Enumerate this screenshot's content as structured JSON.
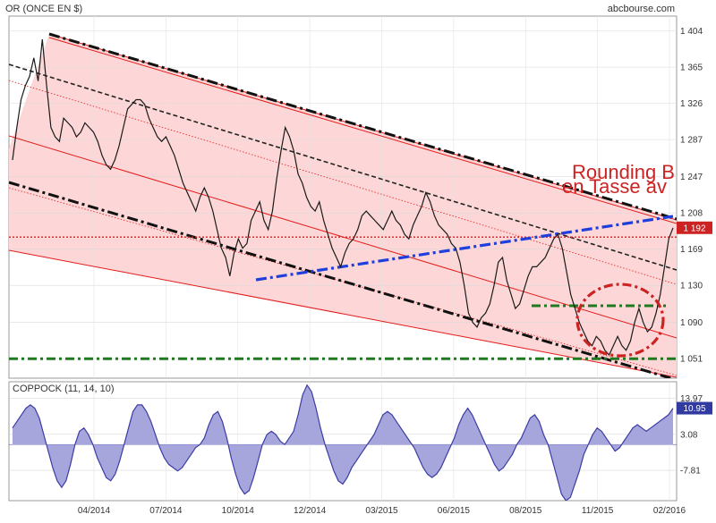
{
  "header": {
    "title": "OR (ONCE EN $)",
    "source": "abcbourse.com"
  },
  "annotation": {
    "line1": "Rounding B",
    "line2": "en Tasse av"
  },
  "colors": {
    "price": "#1a1a1a",
    "channel_fill": "#fdd7d7",
    "channel_line": "#e41a1a",
    "support_blue": "#1f3fdc",
    "green_level": "#1f7a1f",
    "coppock_fill": "#a6a6dd",
    "coppock_line": "#3c3ca3",
    "badge_red": "#cc2222",
    "badge_blue": "#303aa0"
  },
  "chart_data": [
    {
      "type": "line",
      "title": "OR (ONCE EN $)",
      "y_ticks": [
        1051,
        1090,
        1130,
        1169,
        1208,
        1247,
        1287,
        1326,
        1365,
        1404
      ],
      "ylim": [
        1030,
        1420
      ],
      "x_ticks": [
        "04/2014",
        "07/2014",
        "10/2014",
        "12/2014",
        "03/2015",
        "06/2015",
        "08/2015",
        "11/2015",
        "02/2016"
      ],
      "last_value": "1 192",
      "grid": true,
      "series": [
        {
          "values": [
            1265,
            1300,
            1330,
            1345,
            1355,
            1375,
            1350,
            1395,
            1345,
            1300,
            1290,
            1285,
            1310,
            1305,
            1300,
            1290,
            1295,
            1305,
            1300,
            1295,
            1285,
            1270,
            1260,
            1255,
            1265,
            1280,
            1300,
            1320,
            1325,
            1330,
            1330,
            1325,
            1310,
            1300,
            1290,
            1285,
            1290,
            1280,
            1270,
            1255,
            1240,
            1230,
            1220,
            1210,
            1225,
            1235,
            1225,
            1210,
            1190,
            1170,
            1160,
            1140,
            1165,
            1180,
            1170,
            1175,
            1200,
            1210,
            1220,
            1200,
            1190,
            1210,
            1245,
            1275,
            1300,
            1290,
            1275,
            1250,
            1240,
            1225,
            1215,
            1210,
            1220,
            1200,
            1185,
            1170,
            1160,
            1150,
            1165,
            1175,
            1180,
            1190,
            1205,
            1210,
            1205,
            1200,
            1195,
            1190,
            1200,
            1210,
            1200,
            1195,
            1185,
            1180,
            1195,
            1205,
            1215,
            1230,
            1220,
            1205,
            1195,
            1190,
            1185,
            1175,
            1170,
            1155,
            1130,
            1100,
            1090,
            1085,
            1095,
            1100,
            1110,
            1130,
            1155,
            1160,
            1135,
            1120,
            1105,
            1110,
            1125,
            1140,
            1150,
            1150,
            1155,
            1160,
            1170,
            1180,
            1185,
            1170,
            1145,
            1120,
            1105,
            1090,
            1080,
            1070,
            1065,
            1075,
            1070,
            1060,
            1055,
            1065,
            1075,
            1065,
            1060,
            1070,
            1090,
            1105,
            1090,
            1080,
            1085,
            1100,
            1120,
            1150,
            1180,
            1192
          ]
        }
      ]
    },
    {
      "type": "area",
      "title": "COPPOCK (11, 14, 10)",
      "y_ticks": [
        13.97,
        3.08,
        -7.81
      ],
      "ylim": [
        -17,
        19
      ],
      "baseline": 0,
      "last_value": "10.95",
      "series": [
        {
          "values": [
            5,
            7,
            9,
            11,
            12,
            11,
            8,
            3,
            -2,
            -7,
            -11,
            -13,
            -11,
            -6,
            0,
            4,
            5,
            3,
            0,
            -4,
            -7,
            -10,
            -11,
            -9,
            -5,
            0,
            5,
            10,
            12,
            12,
            10,
            7,
            3,
            -1,
            -4,
            -6,
            -7,
            -8,
            -7,
            -5,
            -3,
            -1,
            0,
            2,
            6,
            9,
            10,
            7,
            2,
            -4,
            -9,
            -13,
            -15,
            -14,
            -10,
            -5,
            0,
            3,
            4,
            3,
            1,
            0,
            2,
            4,
            9,
            15,
            18,
            16,
            11,
            5,
            0,
            -4,
            -8,
            -11,
            -12,
            -10,
            -7,
            -5,
            -3,
            -1,
            1,
            3,
            6,
            9,
            10,
            9,
            7,
            5,
            3,
            1,
            -1,
            -4,
            -7,
            -9,
            -10,
            -9,
            -7,
            -4,
            -1,
            2,
            6,
            9,
            11,
            9,
            6,
            3,
            0,
            -3,
            -6,
            -8,
            -7,
            -5,
            -3,
            0,
            2,
            5,
            8,
            9,
            7,
            3,
            0,
            -5,
            -10,
            -15,
            -17,
            -16,
            -12,
            -8,
            -3,
            0,
            3,
            5,
            4,
            2,
            0,
            -2,
            -1,
            1,
            3,
            5,
            6,
            5,
            4,
            5,
            6,
            7,
            8,
            9,
            11
          ]
        }
      ]
    }
  ]
}
